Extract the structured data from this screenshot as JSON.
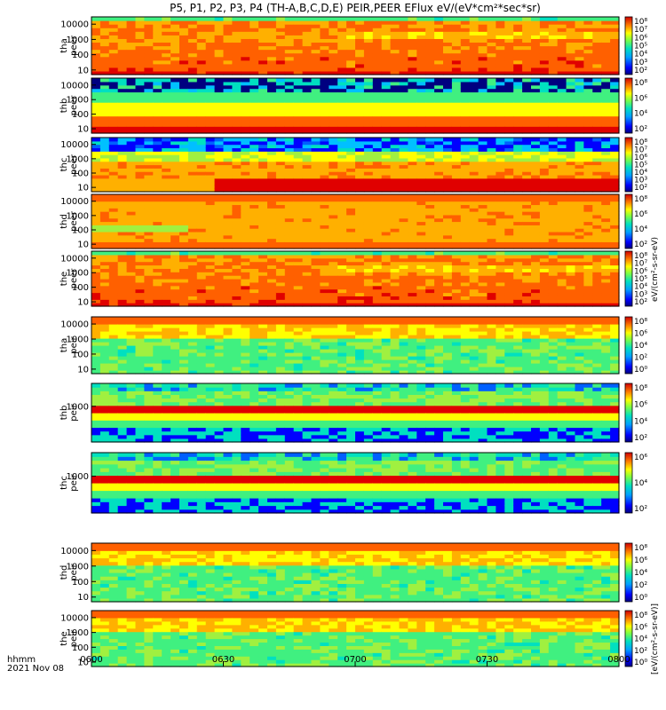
{
  "title": "P5, P1, P2, P3, P4 (TH-A,B,C,D,E) PEIR,PEER EFlux eV/(eV*cm²*sec*sr)",
  "time_axis": {
    "label_line1": "hhmm",
    "label_line2": "2021 Nov 08",
    "ticks": [
      "0600",
      "0630",
      "0700",
      "0730",
      "0800"
    ]
  },
  "colorbar_unit_peer": "eV/(cm²-s-sr-eV)",
  "colorbar_unit_peir": "[eV/(cm²-s-sr-eV)]",
  "chart_data": [
    {
      "type": "heatmap",
      "panel": "tha peer",
      "ylabel_top": "tha",
      "ylabel_bottom": "peer",
      "ylim": [
        5,
        30000
      ],
      "ylog": true,
      "yticks": [
        "10000",
        "1000",
        "100",
        "10"
      ],
      "x_range": [
        "0600",
        "0800"
      ],
      "cbar_ticks": [
        "10⁸",
        "10⁷",
        "10⁶",
        "10⁵",
        "10⁴",
        "10³",
        "10²"
      ],
      "scheme": "hot_low",
      "value_range": [
        100,
        100000000
      ]
    },
    {
      "type": "heatmap",
      "panel": "thb peer",
      "ylabel_top": "thb",
      "ylabel_bottom": "peer",
      "ylim": [
        5,
        30000
      ],
      "ylog": true,
      "yticks": [
        "10000",
        "1000",
        "100",
        "10"
      ],
      "x_range": [
        "0600",
        "0800"
      ],
      "cbar_ticks": [
        "10⁸",
        "10⁶",
        "10⁴",
        "10²"
      ],
      "scheme": "noisy_top",
      "value_range": [
        100,
        100000000
      ]
    },
    {
      "type": "heatmap",
      "panel": "thc peer",
      "ylabel_top": "thc",
      "ylabel_bottom": "peer",
      "ylim": [
        5,
        30000
      ],
      "ylog": true,
      "yticks": [
        "10000",
        "1000",
        "100",
        "10"
      ],
      "x_range": [
        "0600",
        "0800"
      ],
      "cbar_ticks": [
        "10⁸",
        "10⁷",
        "10⁶",
        "10⁵",
        "10⁴",
        "10³",
        "10²"
      ],
      "scheme": "step_low",
      "value_range": [
        100,
        100000000
      ]
    },
    {
      "type": "heatmap",
      "panel": "thd peer",
      "ylabel_top": "thd",
      "ylabel_bottom": "peer",
      "ylim": [
        5,
        30000
      ],
      "ylog": true,
      "yticks": [
        "10000",
        "1000",
        "100",
        "10"
      ],
      "x_range": [
        "0600",
        "0800"
      ],
      "cbar_ticks": [
        "10⁸",
        "10⁶",
        "10⁴",
        "10²"
      ],
      "scheme": "warm_all",
      "value_range": [
        100,
        100000000
      ]
    },
    {
      "type": "heatmap",
      "panel": "the peer",
      "ylabel_top": "the",
      "ylabel_bottom": "peer",
      "ylim": [
        5,
        30000
      ],
      "ylog": true,
      "yticks": [
        "10000",
        "1000",
        "100",
        "10"
      ],
      "x_range": [
        "0600",
        "0800"
      ],
      "cbar_ticks": [
        "10⁸",
        "10⁷",
        "10⁶",
        "10⁵",
        "10⁴",
        "10³",
        "10²"
      ],
      "scheme": "hot_low",
      "value_range": [
        100,
        100000000
      ]
    },
    {
      "type": "heatmap",
      "panel": "tha peir",
      "ylabel_top": "tha",
      "ylabel_bottom": "peir",
      "ylim": [
        5,
        30000
      ],
      "ylog": true,
      "yticks": [
        "10000",
        "1000",
        "100",
        "10"
      ],
      "x_range": [
        "0600",
        "0800"
      ],
      "cbar_ticks": [
        "10⁸",
        "10⁶",
        "10⁴",
        "10²",
        "10⁰"
      ],
      "scheme": "ion",
      "value_range": [
        1,
        100000000
      ]
    },
    {
      "type": "heatmap",
      "panel": "thb peir",
      "ylabel_top": "thb",
      "ylabel_bottom": "peir",
      "ylim": [
        5,
        30000
      ],
      "ylog": true,
      "yticks": [
        "1000"
      ],
      "x_range": [
        "0600",
        "0800"
      ],
      "cbar_ticks": [
        "10⁸",
        "10⁶",
        "10⁴",
        "10²"
      ],
      "scheme": "ion_noisy",
      "value_range": [
        100,
        100000000
      ]
    },
    {
      "type": "heatmap",
      "panel": "thc peir",
      "ylabel_top": "thc",
      "ylabel_bottom": "peir",
      "ylim": [
        5,
        30000
      ],
      "ylog": true,
      "yticks": [
        "1000"
      ],
      "x_range": [
        "0600",
        "0800"
      ],
      "cbar_ticks": [
        "10⁶",
        "10⁴",
        "10²"
      ],
      "scheme": "ion_noisy",
      "value_range": [
        100,
        1000000
      ]
    },
    {
      "type": "heatmap",
      "panel": "thd peir",
      "ylabel_top": "thd",
      "ylabel_bottom": "peir",
      "ylim": [
        5,
        30000
      ],
      "ylog": true,
      "yticks": [
        "10000",
        "1000",
        "100",
        "10"
      ],
      "x_range": [
        "0600",
        "0800"
      ],
      "cbar_ticks": [
        "10⁸",
        "10⁶",
        "10⁴",
        "10²",
        "10⁰"
      ],
      "scheme": "ion",
      "value_range": [
        1,
        100000000
      ]
    },
    {
      "type": "heatmap",
      "panel": "the peir",
      "ylabel_top": "the",
      "ylabel_bottom": "peir",
      "ylim": [
        5,
        30000
      ],
      "ylog": true,
      "yticks": [
        "10000",
        "1000",
        "100",
        "10"
      ],
      "x_range": [
        "0600",
        "0800"
      ],
      "cbar_ticks": [
        "10⁸",
        "10⁶",
        "10⁴",
        "10²",
        "10⁰"
      ],
      "scheme": "ion",
      "value_range": [
        1,
        100000000
      ]
    }
  ]
}
